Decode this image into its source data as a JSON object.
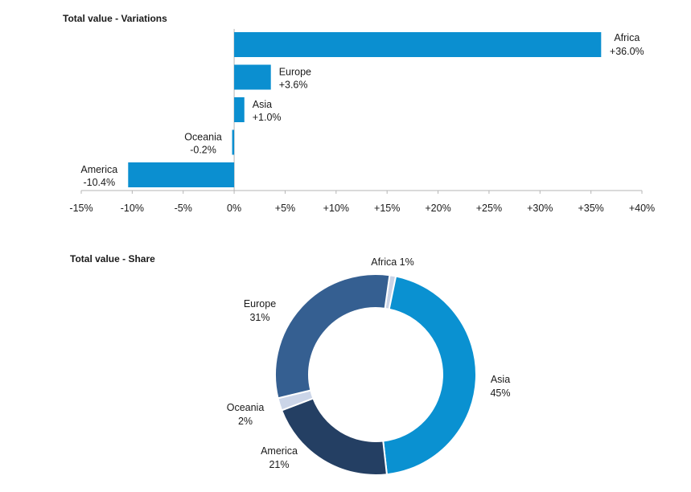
{
  "chart_data": [
    {
      "type": "bar",
      "orientation": "horizontal",
      "title": "Total value - Variations",
      "categories": [
        "Africa",
        "Europe",
        "Asia",
        "Oceania",
        "America"
      ],
      "values": [
        36.0,
        3.6,
        1.0,
        -0.2,
        -10.4
      ],
      "value_labels": [
        "+36.0%",
        "+3.6%",
        "+1.0%",
        "-0.2%",
        "-10.4%"
      ],
      "xlim": [
        -15,
        40
      ],
      "x_ticks": [
        -15,
        -10,
        -5,
        0,
        5,
        10,
        15,
        20,
        25,
        30,
        35,
        40
      ],
      "x_tick_labels": [
        "-15%",
        "-10%",
        "-5%",
        "0%",
        "+5%",
        "+10%",
        "+15%",
        "+20%",
        "+25%",
        "+30%",
        "+35%",
        "+40%"
      ],
      "grid": false,
      "color": "#0b8fd0"
    },
    {
      "type": "pie",
      "variant": "donut",
      "title": "Total value - Share",
      "slices": [
        {
          "label": "Africa",
          "value_label": "1%",
          "value": 1,
          "color": "#c9d3e6"
        },
        {
          "label": "Asia",
          "value_label": "45%",
          "value": 45,
          "color": "#0a91d1"
        },
        {
          "label": "America",
          "value_label": "21%",
          "value": 21,
          "color": "#243f63"
        },
        {
          "label": "Oceania",
          "value_label": "2%",
          "value": 2,
          "color": "#cbd5e8"
        },
        {
          "label": "Europe",
          "value_label": "31%",
          "value": 31,
          "color": "#355f91"
        }
      ]
    }
  ]
}
